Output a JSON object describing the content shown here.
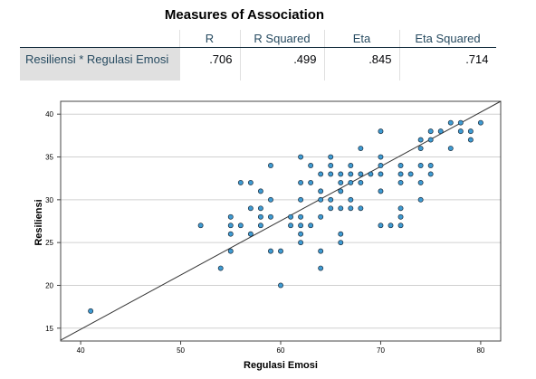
{
  "table": {
    "title": "Measures of Association",
    "headers": [
      "R",
      "R Squared",
      "Eta",
      "Eta Squared"
    ],
    "row_label": "Resiliensi * Regulasi Emosi",
    "values": [
      ".706",
      ".499",
      ".845",
      ".714"
    ]
  },
  "chart_data": {
    "type": "scatter",
    "xlabel": "Regulasi Emosi",
    "ylabel": "Resiliensi",
    "xlim": [
      38,
      82
    ],
    "ylim": [
      13.5,
      41.5
    ],
    "x_ticks": [
      40,
      50,
      60,
      70,
      80
    ],
    "y_ticks": [
      15,
      20,
      25,
      30,
      35,
      40
    ],
    "grid": "horizontal",
    "point_color": "#3e9bd3",
    "fit_line": {
      "x": [
        38,
        82
      ],
      "y": [
        13.6,
        41.5
      ]
    },
    "points": [
      [
        41,
        17
      ],
      [
        52,
        27
      ],
      [
        54,
        22
      ],
      [
        55,
        24
      ],
      [
        55,
        26
      ],
      [
        55,
        27
      ],
      [
        55,
        28
      ],
      [
        56,
        27
      ],
      [
        56,
        32
      ],
      [
        57,
        26
      ],
      [
        57,
        29
      ],
      [
        57,
        32
      ],
      [
        58,
        27
      ],
      [
        58,
        28
      ],
      [
        58,
        29
      ],
      [
        58,
        31
      ],
      [
        59,
        24
      ],
      [
        59,
        28
      ],
      [
        59,
        30
      ],
      [
        59,
        34
      ],
      [
        60,
        20
      ],
      [
        60,
        24
      ],
      [
        61,
        27
      ],
      [
        61,
        28
      ],
      [
        62,
        25
      ],
      [
        62,
        26
      ],
      [
        62,
        27
      ],
      [
        62,
        28
      ],
      [
        62,
        30
      ],
      [
        62,
        32
      ],
      [
        62,
        35
      ],
      [
        63,
        27
      ],
      [
        63,
        32
      ],
      [
        63,
        34
      ],
      [
        64,
        22
      ],
      [
        64,
        24
      ],
      [
        64,
        28
      ],
      [
        64,
        30
      ],
      [
        64,
        31
      ],
      [
        64,
        33
      ],
      [
        65,
        29
      ],
      [
        65,
        30
      ],
      [
        65,
        33
      ],
      [
        65,
        34
      ],
      [
        65,
        35
      ],
      [
        66,
        25
      ],
      [
        66,
        26
      ],
      [
        66,
        29
      ],
      [
        66,
        31
      ],
      [
        66,
        32
      ],
      [
        66,
        33
      ],
      [
        67,
        29
      ],
      [
        67,
        30
      ],
      [
        67,
        32
      ],
      [
        67,
        33
      ],
      [
        67,
        34
      ],
      [
        68,
        29
      ],
      [
        68,
        32
      ],
      [
        68,
        33
      ],
      [
        68,
        36
      ],
      [
        69,
        33
      ],
      [
        70,
        27
      ],
      [
        70,
        31
      ],
      [
        70,
        33
      ],
      [
        70,
        34
      ],
      [
        70,
        35
      ],
      [
        70,
        38
      ],
      [
        71,
        27
      ],
      [
        72,
        27
      ],
      [
        72,
        28
      ],
      [
        72,
        29
      ],
      [
        72,
        32
      ],
      [
        72,
        33
      ],
      [
        72,
        34
      ],
      [
        73,
        33
      ],
      [
        74,
        30
      ],
      [
        74,
        32
      ],
      [
        74,
        34
      ],
      [
        74,
        36
      ],
      [
        74,
        37
      ],
      [
        75,
        33
      ],
      [
        75,
        34
      ],
      [
        75,
        37
      ],
      [
        75,
        38
      ],
      [
        76,
        38
      ],
      [
        77,
        36
      ],
      [
        77,
        39
      ],
      [
        78,
        38
      ],
      [
        78,
        39
      ],
      [
        79,
        37
      ],
      [
        79,
        38
      ],
      [
        80,
        39
      ]
    ]
  }
}
